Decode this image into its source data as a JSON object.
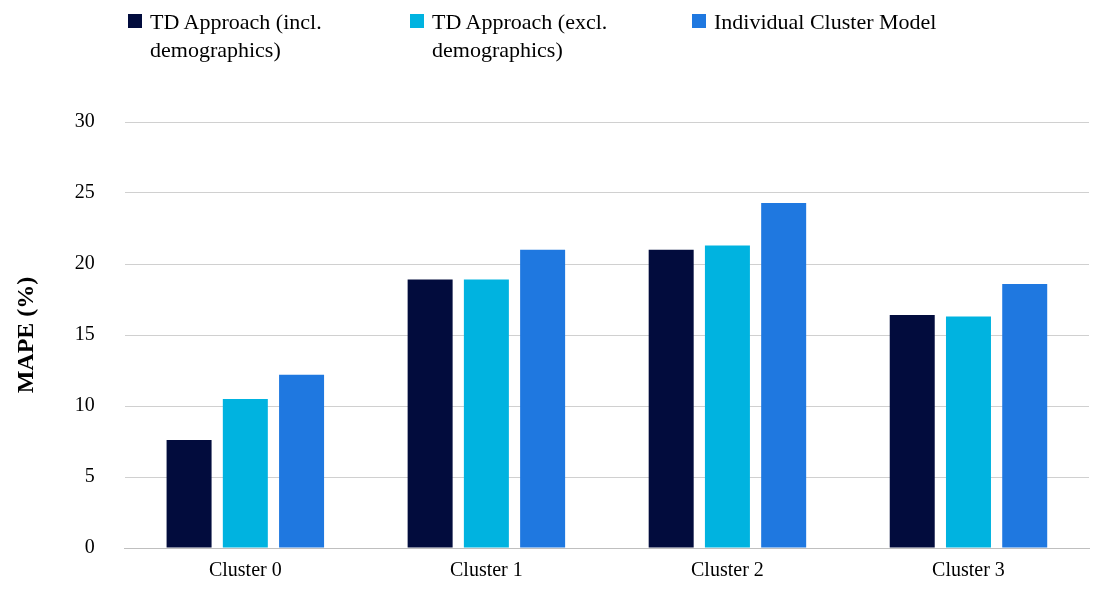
{
  "chart_data": {
    "type": "bar",
    "ylabel": "MAPE (%)",
    "categories": [
      "Cluster 0",
      "Cluster 1",
      "Cluster 2",
      "Cluster 3"
    ],
    "series": [
      {
        "name": "TD Approach (incl. demographics)",
        "color": "#020c3d",
        "values": [
          7.6,
          18.9,
          21.0,
          16.4
        ]
      },
      {
        "name": "TD Approach (excl. demographics)",
        "color": "#00b3e0",
        "values": [
          10.5,
          18.9,
          21.3,
          16.3
        ]
      },
      {
        "name": "Individual Cluster Model",
        "color": "#1f78e0",
        "values": [
          12.2,
          21.0,
          24.3,
          18.6
        ]
      }
    ],
    "ylim": [
      0,
      30
    ],
    "yticks": [
      0,
      5,
      10,
      15,
      20,
      25,
      30
    ],
    "grid": "y",
    "legend": "top left"
  }
}
